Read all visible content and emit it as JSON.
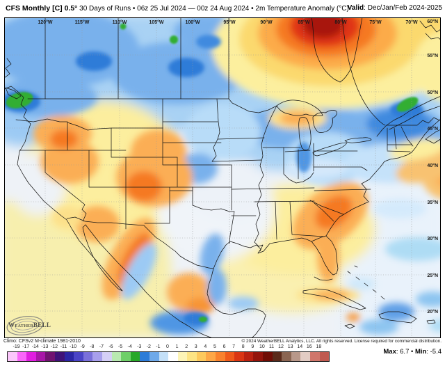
{
  "header": {
    "title_bold": "CFS Monthly [C] 0.5°",
    "title_rest": " 30 Days of Runs • 06z 25 Jul 2024 — 00z 24 Aug 2024 • 2m Temperature Anomaly (°C)",
    "valid_bold": "Valid",
    "valid_rest": ": Dec/Jan/Feb 2024-2025"
  },
  "map": {
    "lon_labels": [
      "120°W",
      "115°W",
      "110°W",
      "105°W",
      "100°W",
      "95°W",
      "90°W",
      "85°W",
      "80°W",
      "75°W",
      "70°W"
    ],
    "lat_labels": [
      "60°N",
      "55°N",
      "50°N",
      "45°N",
      "40°N",
      "35°N",
      "30°N",
      "25°N",
      "20°N"
    ]
  },
  "legend": {
    "climo": "Climo: CFSv2 M-climate 1981-2010",
    "copyright": "© 2024 WeatherBELL Analytics, LLC. All rights reserved. License required for commercial distribution.",
    "max_label": "Max",
    "max_value": ": 6.7",
    "separator": " • ",
    "min_label": "Min",
    "min_value": ": -5.4"
  },
  "colorbar": {
    "tick_labels": [
      "-19",
      "-17",
      "-14",
      "-13",
      "-12",
      "-11",
      "-10",
      "-9",
      "-8",
      "-7",
      "-6",
      "-5",
      "-4",
      "-3",
      "-2",
      "-1",
      "0",
      "1",
      "2",
      "3",
      "4",
      "5",
      "6",
      "7",
      "8",
      "9",
      "10",
      "11",
      "12",
      "13",
      "14",
      "16",
      "18"
    ],
    "segment_colors": [
      "#fbc6fb",
      "#f966f9",
      "#e01ee0",
      "#a816a8",
      "#711371",
      "#3f1378",
      "#2b26a4",
      "#4a44c6",
      "#7a70da",
      "#a89fec",
      "#d5cff6",
      "#b9e9b1",
      "#6fcf68",
      "#28a828",
      "#2d7cd8",
      "#6fa9e9",
      "#c4e0f8",
      "#ffffff",
      "#fdf4b6",
      "#fde484",
      "#fdc95d",
      "#fda747",
      "#f9822e",
      "#ef5a1b",
      "#da3513",
      "#b92110",
      "#93140b",
      "#6f0d05",
      "#5a2a1a",
      "#8a6552",
      "#b8988a",
      "#e2ccc4",
      "#d0766b",
      "#c05a50"
    ]
  },
  "logo": {
    "brand": "WeatherBELL"
  }
}
